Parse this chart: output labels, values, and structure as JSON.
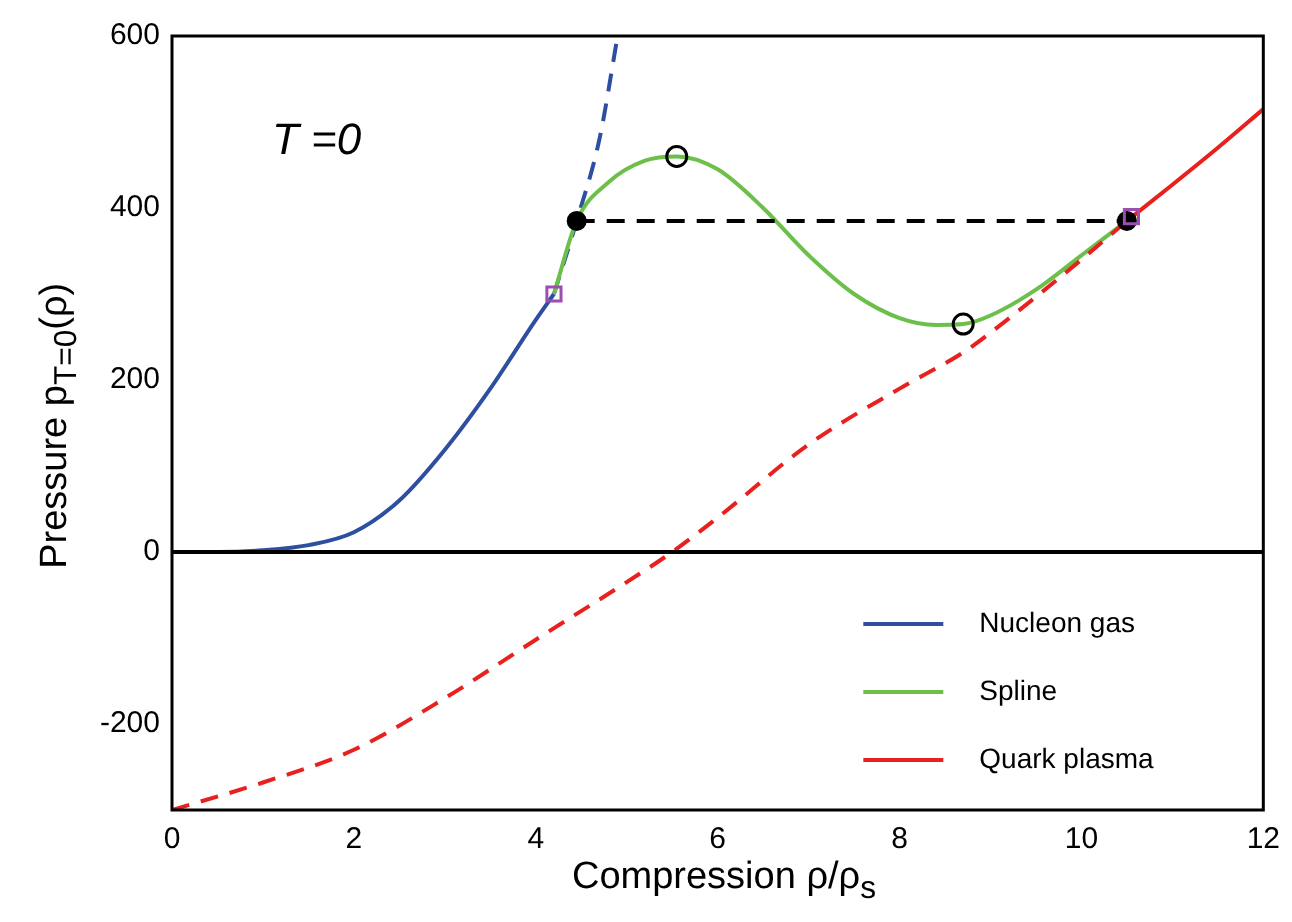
{
  "chart_data": {
    "type": "line",
    "xlabel": "Compression ρ/ρ$_{s}$",
    "ylabel": "Pressure p$_{T=0}$(ρ)",
    "annotations": [
      "T =0"
    ],
    "xlim": [
      0,
      12
    ],
    "ylim": [
      -300,
      600
    ],
    "xticks": [
      0,
      2,
      4,
      6,
      8,
      10,
      12
    ],
    "yticks": [
      -200,
      0,
      200,
      400,
      600
    ],
    "grid": false,
    "legend": "bottom right",
    "ref_lines": [
      {
        "axis": "y",
        "value": 0,
        "color": "#000000",
        "line_style": "solid"
      }
    ],
    "series": [
      {
        "name": "Nucleon gas",
        "color": "#2e4fa0",
        "line_style": "solid",
        "x": [
          0,
          0.5,
          1,
          1.5,
          2,
          2.5,
          3,
          3.5,
          4,
          4.2
        ],
        "values": [
          0,
          0,
          2,
          8,
          23,
          60,
          119,
          190,
          270,
          300
        ]
      },
      {
        "color": "#2e4fa0",
        "line_style": "dashed",
        "x": [
          4.2,
          4.45,
          4.7,
          4.9
        ],
        "values": [
          300,
          385,
          480,
          600
        ]
      },
      {
        "name": "Spline",
        "color": "#6cc04a",
        "line_style": "solid",
        "x": [
          4.2,
          4.45,
          4.8,
          5.2,
          5.55,
          6,
          6.5,
          7,
          7.5,
          8,
          8.4,
          8.7,
          9,
          9.5,
          10,
          10.5
        ],
        "values": [
          300,
          385,
          430,
          455,
          460,
          445,
          400,
          345,
          300,
          272,
          264,
          265,
          275,
          305,
          345,
          385
        ]
      },
      {
        "name": "Quark plasma",
        "color": "#e8201e",
        "line_style": "solid",
        "x": [
          10.5,
          11,
          11.5,
          12
        ],
        "values": [
          385,
          427,
          470,
          515
        ]
      },
      {
        "color": "#e8201e",
        "line_style": "dashed",
        "x": [
          0,
          1,
          2,
          3,
          4,
          5,
          5.5,
          6,
          7,
          8,
          8.7,
          9,
          10,
          10.5
        ],
        "values": [
          -300,
          -268,
          -230,
          -170,
          -102,
          -35,
          0,
          40,
          125,
          190,
          232,
          255,
          340,
          385
        ]
      },
      {
        "color": "#000000",
        "line_style": "dashed",
        "marker": "circle",
        "x": [
          4.45,
          10.5
        ],
        "values": [
          385,
          385
        ]
      },
      {
        "type": "scatter",
        "color": "#000000",
        "marker": "circle",
        "x": [
          5.55,
          8.7
        ],
        "values": [
          460,
          265
        ]
      },
      {
        "type": "scatter",
        "color": "#9b4fb0",
        "marker": "square",
        "x": [
          4.2,
          10.55
        ],
        "values": [
          300,
          390
        ]
      }
    ]
  }
}
